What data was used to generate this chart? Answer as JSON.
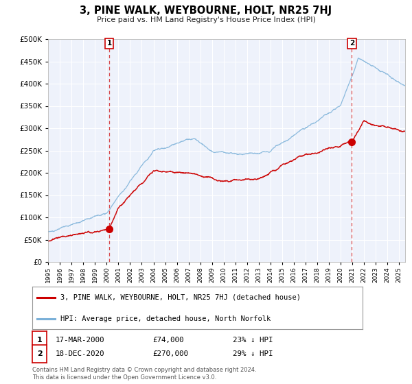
{
  "title": "3, PINE WALK, WEYBOURNE, HOLT, NR25 7HJ",
  "subtitle": "Price paid vs. HM Land Registry's House Price Index (HPI)",
  "ylim": [
    0,
    500000
  ],
  "yticks": [
    0,
    50000,
    100000,
    150000,
    200000,
    250000,
    300000,
    350000,
    400000,
    450000,
    500000
  ],
  "xlim_start": 1995.0,
  "xlim_end": 2025.5,
  "background_color": "#eef2fb",
  "grid_color": "#ffffff",
  "red_color": "#cc0000",
  "blue_color": "#7ab0d8",
  "sale1_year": 2000.21,
  "sale1_price": 74000,
  "sale2_year": 2020.96,
  "sale2_price": 270000,
  "legend_label_red": "3, PINE WALK, WEYBOURNE, HOLT, NR25 7HJ (detached house)",
  "legend_label_blue": "HPI: Average price, detached house, North Norfolk",
  "table_row1": [
    "1",
    "17-MAR-2000",
    "£74,000",
    "23% ↓ HPI"
  ],
  "table_row2": [
    "2",
    "18-DEC-2020",
    "£270,000",
    "29% ↓ HPI"
  ],
  "footnote1": "Contains HM Land Registry data © Crown copyright and database right 2024.",
  "footnote2": "This data is licensed under the Open Government Licence v3.0."
}
